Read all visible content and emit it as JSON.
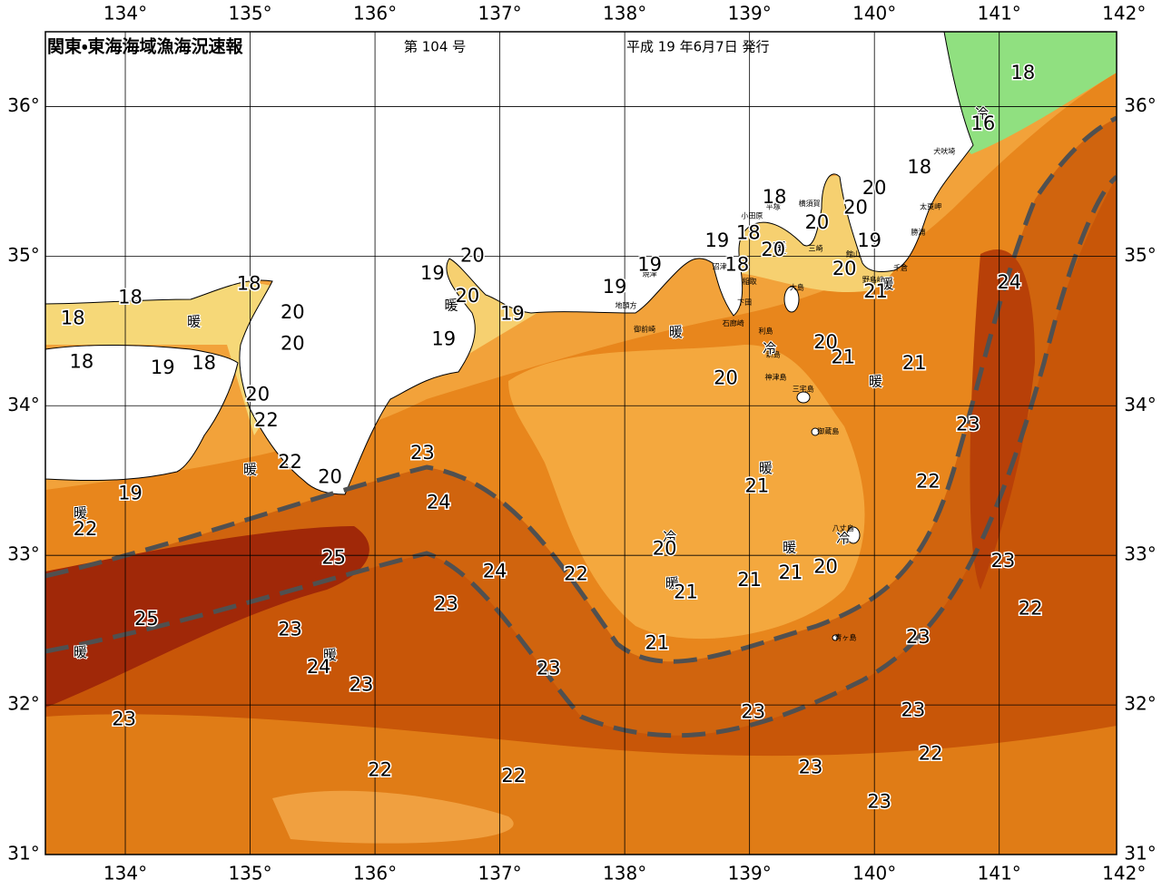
{
  "map": {
    "type": "map",
    "title": "関東・東海海域漁海況速報",
    "issue": "第 104 号",
    "date": "平成 19 年6月7日 発行",
    "xlim": [
      133.36,
      141.94
    ],
    "ylim": [
      31,
      36.5
    ],
    "xticks": [
      {
        "value": 134,
        "label": "134°"
      },
      {
        "value": 135,
        "label": "135°"
      },
      {
        "value": 136,
        "label": "136°"
      },
      {
        "value": 137,
        "label": "137°"
      },
      {
        "value": 138,
        "label": "138°"
      },
      {
        "value": 139,
        "label": "139°"
      },
      {
        "value": 140,
        "label": "140°"
      },
      {
        "value": 141,
        "label": "141°"
      },
      {
        "value": 142,
        "label": "142°"
      }
    ],
    "yticks": [
      {
        "value": 31,
        "label": "31°"
      },
      {
        "value": 32,
        "label": "32°"
      },
      {
        "value": 33,
        "label": "33°"
      },
      {
        "value": 34,
        "label": "34°"
      },
      {
        "value": 35,
        "label": "35°"
      },
      {
        "value": 36,
        "label": "36°"
      }
    ],
    "grid": true,
    "temps": {
      "lon": [
        141.19,
        140.87,
        140.36,
        140.0,
        139.85,
        139.2,
        139.54,
        139.19,
        138.99,
        138.74,
        138.9,
        139.96,
        139.76,
        140.01,
        141.08,
        138.2,
        137.92,
        136.78,
        136.46,
        136.74,
        137.1,
        136.55,
        134.04,
        134.99,
        133.58,
        135.34,
        135.34,
        133.65,
        134.3,
        134.63,
        135.06,
        135.13,
        135.32,
        135.64,
        134.04,
        133.68,
        136.38,
        136.51,
        135.67,
        136.96,
        136.57,
        137.61,
        138.32,
        138.49,
        139.0,
        139.33,
        139.61,
        138.26,
        138.81,
        139.61,
        139.75,
        140.32,
        140.75,
        140.43,
        139.06,
        141.03,
        141.25,
        140.35,
        140.31,
        140.45,
        139.49,
        140.04,
        139.03,
        137.39,
        135.89,
        135.55,
        135.32,
        134.17,
        133.99,
        136.04,
        137.11
      ],
      "lat": [
        36.22,
        35.88,
        35.59,
        35.45,
        35.32,
        35.39,
        35.22,
        35.04,
        35.15,
        35.1,
        34.94,
        35.1,
        34.91,
        34.76,
        34.82,
        34.94,
        34.79,
        35.0,
        34.88,
        34.73,
        34.61,
        34.44,
        34.72,
        34.81,
        34.58,
        34.62,
        34.41,
        34.29,
        34.25,
        34.28,
        34.07,
        33.9,
        33.62,
        33.52,
        33.41,
        33.17,
        33.68,
        33.35,
        32.98,
        32.89,
        32.67,
        32.87,
        33.04,
        32.75,
        32.83,
        32.88,
        32.92,
        32.41,
        34.18,
        34.42,
        34.32,
        34.28,
        33.87,
        33.49,
        33.46,
        32.96,
        32.64,
        32.45,
        31.96,
        31.67,
        31.58,
        31.35,
        31.95,
        32.24,
        32.13,
        32.25,
        32.5,
        32.57,
        31.9,
        31.56,
        31.52
      ],
      "values": [
        18,
        16,
        18,
        20,
        20,
        18,
        20,
        20,
        18,
        19,
        18,
        19,
        20,
        21,
        24,
        19,
        19,
        20,
        19,
        20,
        19,
        19,
        18,
        18,
        18,
        20,
        20,
        18,
        19,
        18,
        20,
        22,
        22,
        20,
        19,
        22,
        23,
        24,
        25,
        24,
        23,
        22,
        20,
        21,
        21,
        21,
        20,
        21,
        20,
        20,
        21,
        21,
        23,
        22,
        21,
        23,
        22,
        23,
        23,
        22,
        23,
        23,
        23,
        23,
        23,
        24,
        23,
        25,
        23,
        22,
        22
      ]
    },
    "markers": [
      {
        "lon": 134.55,
        "lat": 34.56,
        "label": "暖"
      },
      {
        "lon": 136.61,
        "lat": 34.67,
        "label": "暖"
      },
      {
        "lon": 138.41,
        "lat": 34.49,
        "label": "暖"
      },
      {
        "lon": 139.24,
        "lat": 35.05,
        "label": "暖"
      },
      {
        "lon": 140.1,
        "lat": 34.81,
        "label": "暖"
      },
      {
        "lon": 140.01,
        "lat": 34.16,
        "label": "暖"
      },
      {
        "lon": 139.13,
        "lat": 33.58,
        "label": "暖"
      },
      {
        "lon": 139.32,
        "lat": 33.05,
        "label": "暖"
      },
      {
        "lon": 138.38,
        "lat": 32.81,
        "label": "暖"
      },
      {
        "lon": 135.64,
        "lat": 32.33,
        "label": "暖"
      },
      {
        "lon": 133.64,
        "lat": 32.35,
        "label": "暖"
      },
      {
        "lon": 133.64,
        "lat": 33.28,
        "label": "暖"
      },
      {
        "lon": 135.0,
        "lat": 33.57,
        "label": "暖"
      },
      {
        "lon": 140.86,
        "lat": 35.95,
        "label": "冷"
      },
      {
        "lon": 139.16,
        "lat": 34.38,
        "label": "冷"
      },
      {
        "lon": 138.36,
        "lat": 33.12,
        "label": "冷"
      },
      {
        "lon": 139.75,
        "lat": 33.11,
        "label": "冷"
      }
    ],
    "places": [
      {
        "lon": 140.56,
        "lat": 35.7,
        "label": "犬吠埼"
      },
      {
        "lon": 140.45,
        "lat": 35.33,
        "label": "太東岬"
      },
      {
        "lon": 140.35,
        "lat": 35.16,
        "label": "勝浦"
      },
      {
        "lon": 140.21,
        "lat": 34.92,
        "label": "千倉"
      },
      {
        "lon": 139.99,
        "lat": 34.84,
        "label": "野島崎"
      },
      {
        "lon": 139.83,
        "lat": 35.01,
        "label": "館山"
      },
      {
        "lon": 139.02,
        "lat": 35.27,
        "label": "小田原"
      },
      {
        "lon": 139.19,
        "lat": 35.33,
        "label": "平塚"
      },
      {
        "lon": 139.48,
        "lat": 35.35,
        "label": "横須賀"
      },
      {
        "lon": 139.53,
        "lat": 35.05,
        "label": "三崎"
      },
      {
        "lon": 139.38,
        "lat": 34.79,
        "label": "大島"
      },
      {
        "lon": 139.0,
        "lat": 34.83,
        "label": "稲取"
      },
      {
        "lon": 138.96,
        "lat": 34.69,
        "label": "下田"
      },
      {
        "lon": 138.87,
        "lat": 34.55,
        "label": "石廊崎"
      },
      {
        "lon": 138.76,
        "lat": 34.93,
        "label": "沼津"
      },
      {
        "lon": 138.2,
        "lat": 34.88,
        "label": "焼津"
      },
      {
        "lon": 138.01,
        "lat": 34.67,
        "label": "地頭方"
      },
      {
        "lon": 138.16,
        "lat": 34.51,
        "label": "御前崎"
      },
      {
        "lon": 139.13,
        "lat": 34.5,
        "label": "利島"
      },
      {
        "lon": 139.19,
        "lat": 34.34,
        "label": "新島"
      },
      {
        "lon": 139.21,
        "lat": 34.19,
        "label": "神津島"
      },
      {
        "lon": 139.43,
        "lat": 34.11,
        "label": "三宅島"
      },
      {
        "lon": 139.63,
        "lat": 33.83,
        "label": "御蔵島"
      },
      {
        "lon": 139.75,
        "lat": 33.18,
        "label": "八丈島"
      },
      {
        "lon": 139.77,
        "lat": 32.45,
        "label": "青ヶ島"
      }
    ]
  }
}
